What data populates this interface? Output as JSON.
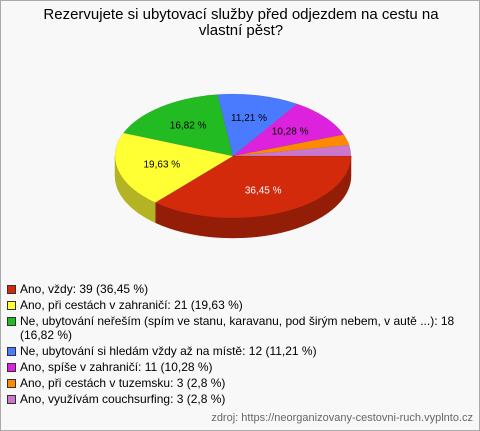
{
  "chart_data": {
    "type": "pie",
    "title": "Rezervujete si ubytovací služby před odjezdem na cestu na vlastní pěst?",
    "categories": [
      "Ano, vždy: 39 (36,45 %)",
      "Ano, při cestách v zahraničí: 21 (19,63 %)",
      "Ne, ubytování neřeším (spím ve stanu, karavanu, pod širým nebem, v autě ...): 18 (16,82 %)",
      "Ne, ubytování si hledám vždy až na místě: 12 (11,21 %)",
      "Ano, spíše v zahraničí: 11 (10,28 %)",
      "Ano, při cestách v tuzemsku: 3 (2,8 %)",
      "Ano, využívám couchsurfing: 3 (2,8 %)"
    ],
    "values": [
      36.45,
      19.63,
      16.82,
      11.21,
      10.28,
      2.8,
      2.8
    ],
    "value_labels": [
      "36,45 %",
      "19,63 %",
      "16,82 %",
      "11,21 %",
      "10,28 %",
      null,
      null
    ],
    "colors": [
      "#d42a0c",
      "#ffff33",
      "#22bb22",
      "#4a7bff",
      "#dd22dd",
      "#ff8a00",
      "#cc77cc"
    ],
    "source": "zdroj: https://neorganizovany-cestovni-ruch.vyplnto.cz"
  }
}
